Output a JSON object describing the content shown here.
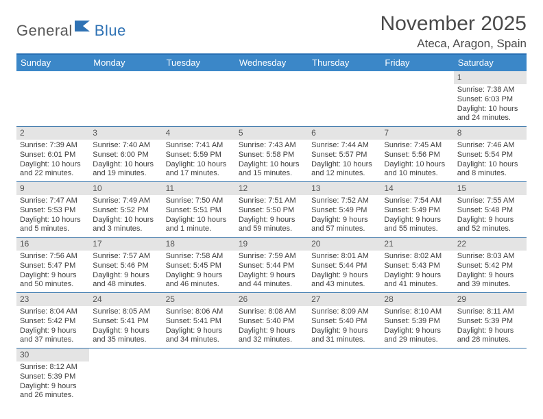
{
  "brand": {
    "part1": "General",
    "part2": "Blue"
  },
  "title": "November 2025",
  "location": "Ateca, Aragon, Spain",
  "colors": {
    "header_bar": "#3b87c8",
    "header_border_top": "#286fb4",
    "row_divider": "#2f6fa8",
    "daynum_bg": "#e4e4e4",
    "text": "#3d3d3d",
    "brand_blue": "#2f72b4",
    "brand_gray": "#585858"
  },
  "weekdays": [
    "Sunday",
    "Monday",
    "Tuesday",
    "Wednesday",
    "Thursday",
    "Friday",
    "Saturday"
  ],
  "weeks": [
    [
      null,
      null,
      null,
      null,
      null,
      null,
      {
        "n": "1",
        "sunrise": "7:38 AM",
        "sunset": "6:03 PM",
        "daylight": "10 hours and 24 minutes."
      }
    ],
    [
      {
        "n": "2",
        "sunrise": "7:39 AM",
        "sunset": "6:01 PM",
        "daylight": "10 hours and 22 minutes."
      },
      {
        "n": "3",
        "sunrise": "7:40 AM",
        "sunset": "6:00 PM",
        "daylight": "10 hours and 19 minutes."
      },
      {
        "n": "4",
        "sunrise": "7:41 AM",
        "sunset": "5:59 PM",
        "daylight": "10 hours and 17 minutes."
      },
      {
        "n": "5",
        "sunrise": "7:43 AM",
        "sunset": "5:58 PM",
        "daylight": "10 hours and 15 minutes."
      },
      {
        "n": "6",
        "sunrise": "7:44 AM",
        "sunset": "5:57 PM",
        "daylight": "10 hours and 12 minutes."
      },
      {
        "n": "7",
        "sunrise": "7:45 AM",
        "sunset": "5:56 PM",
        "daylight": "10 hours and 10 minutes."
      },
      {
        "n": "8",
        "sunrise": "7:46 AM",
        "sunset": "5:54 PM",
        "daylight": "10 hours and 8 minutes."
      }
    ],
    [
      {
        "n": "9",
        "sunrise": "7:47 AM",
        "sunset": "5:53 PM",
        "daylight": "10 hours and 5 minutes."
      },
      {
        "n": "10",
        "sunrise": "7:49 AM",
        "sunset": "5:52 PM",
        "daylight": "10 hours and 3 minutes."
      },
      {
        "n": "11",
        "sunrise": "7:50 AM",
        "sunset": "5:51 PM",
        "daylight": "10 hours and 1 minute."
      },
      {
        "n": "12",
        "sunrise": "7:51 AM",
        "sunset": "5:50 PM",
        "daylight": "9 hours and 59 minutes."
      },
      {
        "n": "13",
        "sunrise": "7:52 AM",
        "sunset": "5:49 PM",
        "daylight": "9 hours and 57 minutes."
      },
      {
        "n": "14",
        "sunrise": "7:54 AM",
        "sunset": "5:49 PM",
        "daylight": "9 hours and 55 minutes."
      },
      {
        "n": "15",
        "sunrise": "7:55 AM",
        "sunset": "5:48 PM",
        "daylight": "9 hours and 52 minutes."
      }
    ],
    [
      {
        "n": "16",
        "sunrise": "7:56 AM",
        "sunset": "5:47 PM",
        "daylight": "9 hours and 50 minutes."
      },
      {
        "n": "17",
        "sunrise": "7:57 AM",
        "sunset": "5:46 PM",
        "daylight": "9 hours and 48 minutes."
      },
      {
        "n": "18",
        "sunrise": "7:58 AM",
        "sunset": "5:45 PM",
        "daylight": "9 hours and 46 minutes."
      },
      {
        "n": "19",
        "sunrise": "7:59 AM",
        "sunset": "5:44 PM",
        "daylight": "9 hours and 44 minutes."
      },
      {
        "n": "20",
        "sunrise": "8:01 AM",
        "sunset": "5:44 PM",
        "daylight": "9 hours and 43 minutes."
      },
      {
        "n": "21",
        "sunrise": "8:02 AM",
        "sunset": "5:43 PM",
        "daylight": "9 hours and 41 minutes."
      },
      {
        "n": "22",
        "sunrise": "8:03 AM",
        "sunset": "5:42 PM",
        "daylight": "9 hours and 39 minutes."
      }
    ],
    [
      {
        "n": "23",
        "sunrise": "8:04 AM",
        "sunset": "5:42 PM",
        "daylight": "9 hours and 37 minutes."
      },
      {
        "n": "24",
        "sunrise": "8:05 AM",
        "sunset": "5:41 PM",
        "daylight": "9 hours and 35 minutes."
      },
      {
        "n": "25",
        "sunrise": "8:06 AM",
        "sunset": "5:41 PM",
        "daylight": "9 hours and 34 minutes."
      },
      {
        "n": "26",
        "sunrise": "8:08 AM",
        "sunset": "5:40 PM",
        "daylight": "9 hours and 32 minutes."
      },
      {
        "n": "27",
        "sunrise": "8:09 AM",
        "sunset": "5:40 PM",
        "daylight": "9 hours and 31 minutes."
      },
      {
        "n": "28",
        "sunrise": "8:10 AM",
        "sunset": "5:39 PM",
        "daylight": "9 hours and 29 minutes."
      },
      {
        "n": "29",
        "sunrise": "8:11 AM",
        "sunset": "5:39 PM",
        "daylight": "9 hours and 28 minutes."
      }
    ],
    [
      {
        "n": "30",
        "sunrise": "8:12 AM",
        "sunset": "5:39 PM",
        "daylight": "9 hours and 26 minutes."
      },
      null,
      null,
      null,
      null,
      null,
      null
    ]
  ],
  "field_labels": {
    "sunrise": "Sunrise:",
    "sunset": "Sunset:",
    "daylight": "Daylight:"
  }
}
